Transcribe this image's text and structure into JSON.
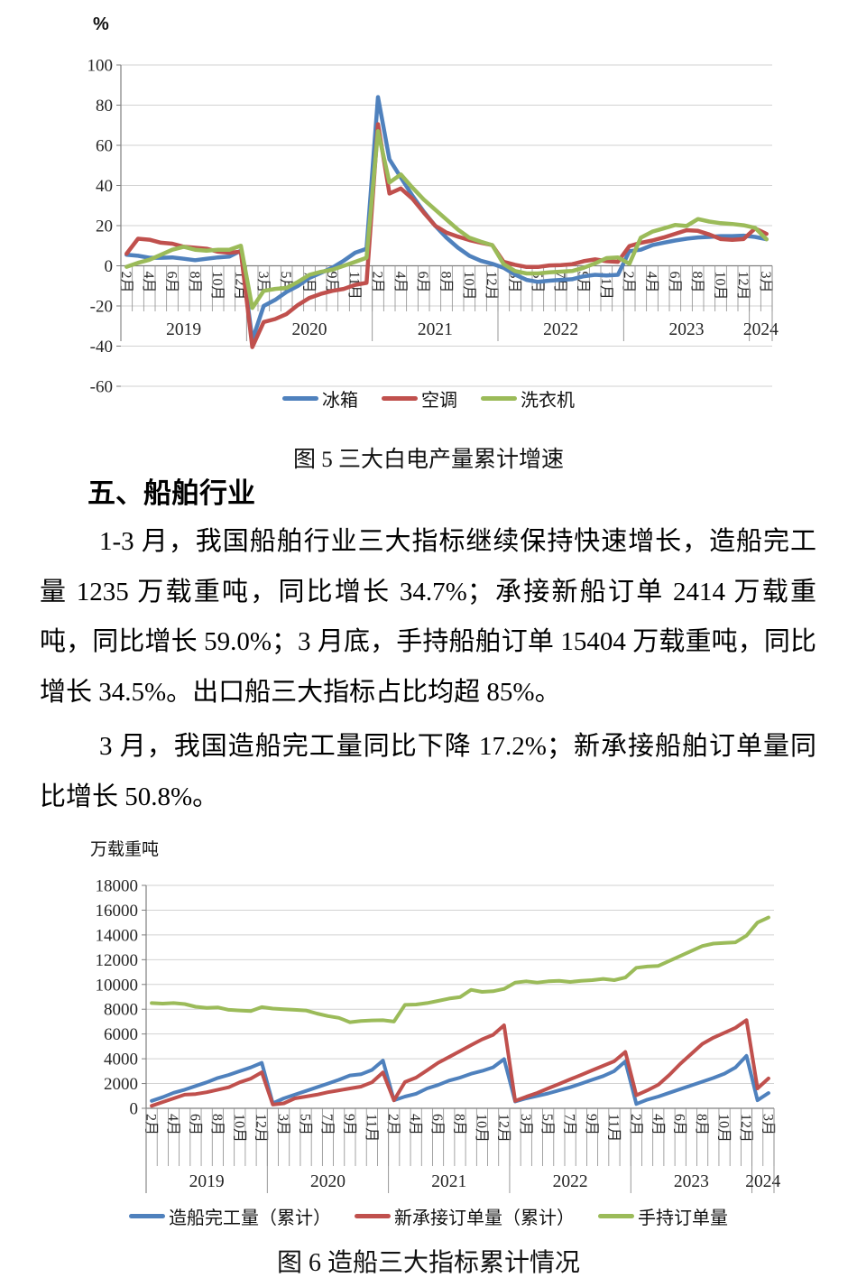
{
  "document": {
    "heading": "五、船舶行业",
    "para1": "1-3 月，我国船舶行业三大指标继续保持快速增长，造船完工量 1235 万载重吨，同比增长 34.7%；承接新船订单 2414 万载重吨，同比增长 59.0%；3 月底，手持船舶订单 15404 万载重吨，同比增长 34.5%。出口船三大指标占比均超 85%。",
    "para2": "3 月，我国造船完工量同比下降 17.2%；新承接船舶订单量同比增长 50.8%。"
  },
  "chart_data": [
    {
      "type": "line",
      "title": "图 5 三大白电产量累计增速",
      "unit_label": "%",
      "ylim": [
        -60,
        100
      ],
      "ystep": 20,
      "grid": true,
      "legend_position": "bottom",
      "years": [
        "2019",
        "2020",
        "2021",
        "2022",
        "2023",
        "2024"
      ],
      "points_per_year": [
        11,
        11,
        11,
        11,
        11,
        2
      ],
      "label_every": 2,
      "x_tick_labels": [
        "2月",
        "4月",
        "6月",
        "8月",
        "10月",
        "12月",
        "3月",
        "5月",
        "7月",
        "9月",
        "11月",
        "2月",
        "4月",
        "6月",
        "8月",
        "10月",
        "12月",
        "3月",
        "5月",
        "7月",
        "9月",
        "11月",
        "2月",
        "4月",
        "6月",
        "8月",
        "10月",
        "12月",
        "3月"
      ],
      "series": [
        {
          "name": "冰箱",
          "color": "#4F81BD",
          "values": [
            5.5,
            5,
            4,
            4,
            4.2,
            3.5,
            2.8,
            3.5,
            4.2,
            4.6,
            7.5,
            -37,
            -20,
            -17,
            -13,
            -10,
            -6,
            -3.5,
            -1,
            2.5,
            6.5,
            8.5,
            84,
            53,
            44,
            35,
            27,
            20,
            14,
            9,
            5,
            2.5,
            1,
            -1,
            -4.4,
            -7,
            -8,
            -7.4,
            -7,
            -6.7,
            -5.2,
            -4.5,
            -4.8,
            -4.5,
            7.3,
            8,
            10.3,
            11.5,
            12.6,
            13.5,
            14.1,
            14.4,
            14.8,
            14.8,
            15,
            14.4,
            13.2
          ]
        },
        {
          "name": "空调",
          "color": "#C0504D",
          "values": [
            6,
            13.5,
            13,
            11.5,
            11,
            9.5,
            9,
            8.5,
            7,
            6.5,
            7,
            -40.5,
            -28,
            -26.5,
            -24,
            -19.5,
            -16,
            -14,
            -12.5,
            -11.5,
            -9.5,
            -8.5,
            70.5,
            36,
            38.5,
            33.5,
            26.5,
            20,
            16.5,
            14.5,
            12.8,
            11.5,
            10.3,
            2,
            0.5,
            -0.6,
            -0.6,
            0.2,
            0.3,
            0.8,
            2.3,
            3.2,
            2.3,
            2,
            9.8,
            11.4,
            12.6,
            14.1,
            15.9,
            17.7,
            17.4,
            15.6,
            13.3,
            12.9,
            13.3,
            18.6,
            15.9
          ]
        },
        {
          "name": "洗衣机",
          "color": "#9BBB59",
          "values": [
            -0.5,
            1.5,
            3,
            5.5,
            8,
            9.5,
            8,
            7.5,
            8,
            8,
            10,
            -21,
            -12.5,
            -11.5,
            -11,
            -8,
            -4.5,
            -3,
            -2,
            0,
            2,
            4,
            67,
            41.5,
            45.5,
            39,
            33,
            28,
            23,
            18,
            14,
            12,
            10.3,
            0.8,
            -2.6,
            -3.8,
            -3.8,
            -3.3,
            -2.9,
            -2.6,
            -1,
            1.2,
            3.8,
            4.2,
            1,
            14,
            17,
            18.6,
            20.3,
            19.8,
            23.3,
            22,
            21.2,
            20.8,
            20.2,
            18.9,
            13.2
          ]
        }
      ]
    },
    {
      "type": "line",
      "title": "图 6 造船三大指标累计情况",
      "unit_label": "万载重吨",
      "ylim": [
        0,
        18000
      ],
      "ystep": 2000,
      "grid": true,
      "legend_position": "bottom",
      "years": [
        "2019",
        "2020",
        "2021",
        "2022",
        "2023",
        "2024"
      ],
      "points_per_year": [
        11,
        11,
        11,
        11,
        11,
        2
      ],
      "label_every": 2,
      "x_tick_labels": [
        "2月",
        "4月",
        "6月",
        "8月",
        "10月",
        "12月",
        "3月",
        "5月",
        "7月",
        "9月",
        "11月",
        "2月",
        "4月",
        "6月",
        "8月",
        "10月",
        "12月",
        "3月",
        "5月",
        "7月",
        "9月",
        "11月",
        "2月",
        "4月",
        "6月",
        "8月",
        "10月",
        "12月",
        "3月"
      ],
      "series": [
        {
          "name": "造船完工量（累计）",
          "color": "#4F81BD",
          "values": [
            600,
            900,
            1250,
            1500,
            1800,
            2100,
            2450,
            2700,
            3000,
            3300,
            3672,
            400,
            800,
            1100,
            1400,
            1700,
            2000,
            2300,
            2650,
            2750,
            3100,
            3853,
            650,
            950,
            1170,
            1600,
            1880,
            2240,
            2480,
            2790,
            3020,
            3310,
            3970,
            550,
            800,
            1000,
            1200,
            1450,
            1700,
            2000,
            2300,
            2600,
            3000,
            3786,
            350,
            700,
            950,
            1250,
            1550,
            1850,
            2150,
            2450,
            2800,
            3300,
            4232,
            650,
            1235
          ]
        },
        {
          "name": "新承接订单量（累计）",
          "color": "#C0504D",
          "values": [
            200,
            500,
            800,
            1100,
            1150,
            1300,
            1500,
            1700,
            2100,
            2400,
            2907,
            300,
            400,
            800,
            950,
            1100,
            1300,
            1450,
            1600,
            1750,
            2100,
            2893,
            640,
            2120,
            2480,
            3070,
            3670,
            4140,
            4620,
            5100,
            5570,
            5930,
            6707,
            600,
            930,
            1240,
            1610,
            1970,
            2340,
            2700,
            3070,
            3430,
            3800,
            4552,
            1050,
            1450,
            1900,
            2700,
            3600,
            4400,
            5200,
            5700,
            6100,
            6500,
            7120,
            1600,
            2414
          ]
        },
        {
          "name": "手持订单量",
          "color": "#9BBB59",
          "values": [
            8500,
            8450,
            8500,
            8420,
            8200,
            8100,
            8150,
            7950,
            7900,
            7850,
            8166,
            8050,
            8000,
            7950,
            7900,
            7650,
            7450,
            7300,
            6950,
            7050,
            7100,
            7111,
            7000,
            8355,
            8380,
            8500,
            8670,
            8860,
            8980,
            9570,
            9400,
            9450,
            9640,
            10150,
            10250,
            10150,
            10250,
            10300,
            10200,
            10300,
            10350,
            10450,
            10350,
            10557,
            11350,
            11450,
            11500,
            11900,
            12300,
            12700,
            13100,
            13300,
            13350,
            13400,
            13939,
            15000,
            15404
          ]
        }
      ]
    }
  ]
}
